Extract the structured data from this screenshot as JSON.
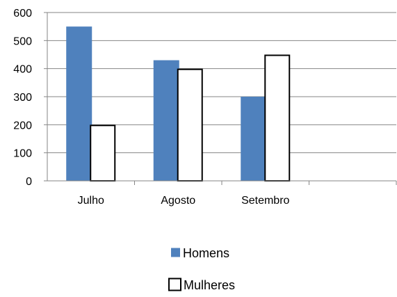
{
  "chart_data": {
    "type": "bar",
    "title": "",
    "xlabel": "",
    "ylabel": "",
    "categories": [
      "Julho",
      "Agosto",
      "Setembro",
      ""
    ],
    "series": [
      {
        "name": "Homens",
        "values": [
          550,
          430,
          300,
          null
        ],
        "color": "#4f81bd",
        "style": "filled"
      },
      {
        "name": "Mulheres",
        "values": [
          200,
          400,
          450,
          null
        ],
        "color": "#ffffff",
        "style": "outlined"
      }
    ],
    "ylim": [
      0,
      600
    ],
    "yticks": [
      0,
      100,
      200,
      300,
      400,
      500,
      600
    ],
    "grid": true,
    "legend_position": "bottom"
  }
}
